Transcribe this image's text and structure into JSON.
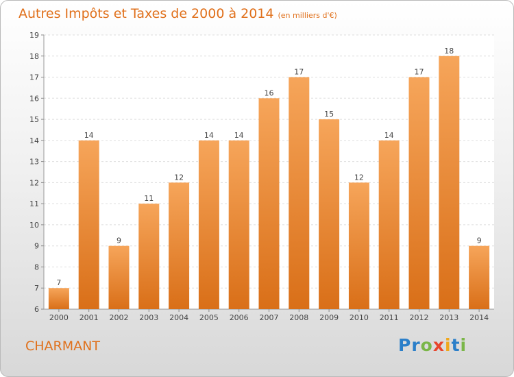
{
  "title": "Autres Impôts et Taxes de 2000 à 2014",
  "subtitle": "(en milliers d'€)",
  "commune": "CHARMANT",
  "logo": {
    "text": "Proxiti",
    "letters": [
      "P",
      "r",
      "o",
      "x",
      "i",
      "t",
      "i"
    ],
    "colors": [
      "#2b7fc9",
      "#2b7fc9",
      "#7ab648",
      "#e8452c",
      "#f0a71c",
      "#2b7fc9",
      "#7ab648"
    ]
  },
  "colors": {
    "accent": "#e0701b",
    "bar_top": "#f6a55a",
    "bar_bottom": "#d96f18"
  },
  "chart_data": {
    "type": "bar",
    "title": "Autres Impôts et Taxes de 2000 à 2014",
    "subtitle": "(en milliers d'€)",
    "categories": [
      "2000",
      "2001",
      "2002",
      "2003",
      "2004",
      "2005",
      "2006",
      "2007",
      "2008",
      "2009",
      "2010",
      "2011",
      "2012",
      "2013",
      "2014"
    ],
    "values": [
      7,
      14,
      9,
      11,
      12,
      14,
      14,
      16,
      17,
      15,
      12,
      14,
      17,
      18,
      9
    ],
    "ylim": [
      6,
      19
    ],
    "yticks": [
      6,
      7,
      8,
      9,
      10,
      11,
      12,
      13,
      14,
      15,
      16,
      17,
      18,
      19
    ],
    "xlabel": "",
    "ylabel": "",
    "grid": true
  }
}
